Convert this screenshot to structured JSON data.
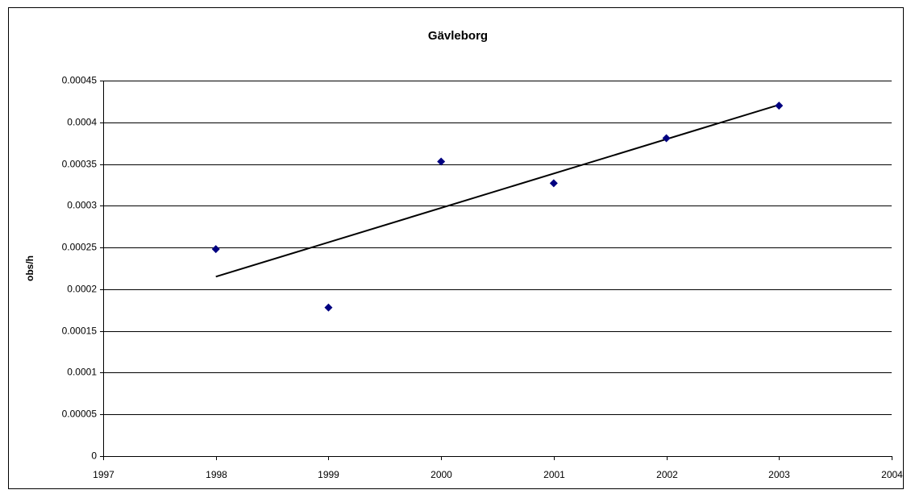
{
  "chart_data": {
    "type": "scatter",
    "title": "Gävleborg",
    "y_label": "obs/h",
    "x": [
      1998,
      1999,
      2000,
      2001,
      2002,
      2003
    ],
    "values": [
      0.000248,
      0.000178,
      0.000353,
      0.000327,
      0.000381,
      0.00042
    ],
    "color": "#000080",
    "trendline": {
      "x": [
        1998,
        2003
      ],
      "values": [
        0.000215,
        0.000421
      ],
      "color": "#000000"
    },
    "xlim": [
      1997,
      2004
    ],
    "xticks": [
      1997,
      1998,
      1999,
      2000,
      2001,
      2002,
      2003,
      2004
    ],
    "ylim": [
      0,
      0.00045
    ],
    "yticks": [
      0,
      5e-05,
      0.0001,
      0.00015,
      0.0002,
      0.00025,
      0.0003,
      0.00035,
      0.0004,
      0.00045
    ],
    "grid": true
  }
}
